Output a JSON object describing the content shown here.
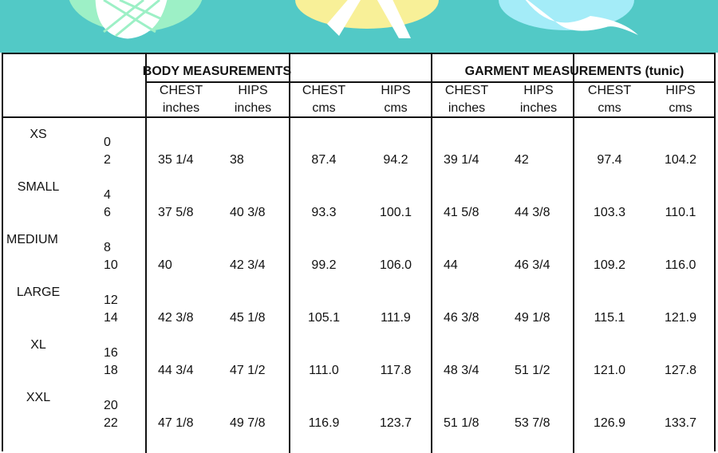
{
  "banner": {
    "color": "#52c9c6",
    "decorations": [
      "pineapple-icon",
      "starfish-icon",
      "wave-icon"
    ]
  },
  "groups": [
    "BODY MEASUREMENTS",
    "GARMENT MEASUREMENTS (tunic)"
  ],
  "columns": [
    {
      "name": "CHEST",
      "unit": "inches"
    },
    {
      "name": "HIPS",
      "unit": "inches"
    },
    {
      "name": "CHEST",
      "unit": "cms"
    },
    {
      "name": "HIPS",
      "unit": "cms"
    },
    {
      "name": "CHEST",
      "unit": "inches"
    },
    {
      "name": "HIPS",
      "unit": "inches"
    },
    {
      "name": "CHEST",
      "unit": "cms"
    },
    {
      "name": "HIPS",
      "unit": "cms"
    }
  ],
  "rows": [
    {
      "size": "XS",
      "num1": "0",
      "num2": "2",
      "values": [
        "35 1/4",
        "38",
        "87.4",
        "94.2",
        "39 1/4",
        "42",
        "97.4",
        "104.2"
      ]
    },
    {
      "size": "SMALL",
      "num1": "4",
      "num2": "6",
      "values": [
        "37 5/8",
        "40 3/8",
        "93.3",
        "100.1",
        "41 5/8",
        "44 3/8",
        "103.3",
        "110.1"
      ]
    },
    {
      "size": "MEDIUM",
      "num1": "8",
      "num2": "10",
      "values": [
        "40",
        "42 3/4",
        "99.2",
        "106.0",
        "44",
        "46 3/4",
        "109.2",
        "116.0"
      ]
    },
    {
      "size": "LARGE",
      "num1": "12",
      "num2": "14",
      "values": [
        "42 3/8",
        "45 1/8",
        "105.1",
        "111.9",
        "46 3/8",
        "49 1/8",
        "115.1",
        "121.9"
      ]
    },
    {
      "size": "XL",
      "num1": "16",
      "num2": "18",
      "values": [
        "44 3/4",
        "47 1/2",
        "111.0",
        "117.8",
        "48 3/4",
        "51 1/2",
        "121.0",
        "127.8"
      ]
    },
    {
      "size": "XXL",
      "num1": "20",
      "num2": "22",
      "values": [
        "47 1/8",
        "49 7/8",
        "116.9",
        "123.7",
        "51 1/8",
        "53 7/8",
        "126.9",
        "133.7"
      ]
    }
  ]
}
